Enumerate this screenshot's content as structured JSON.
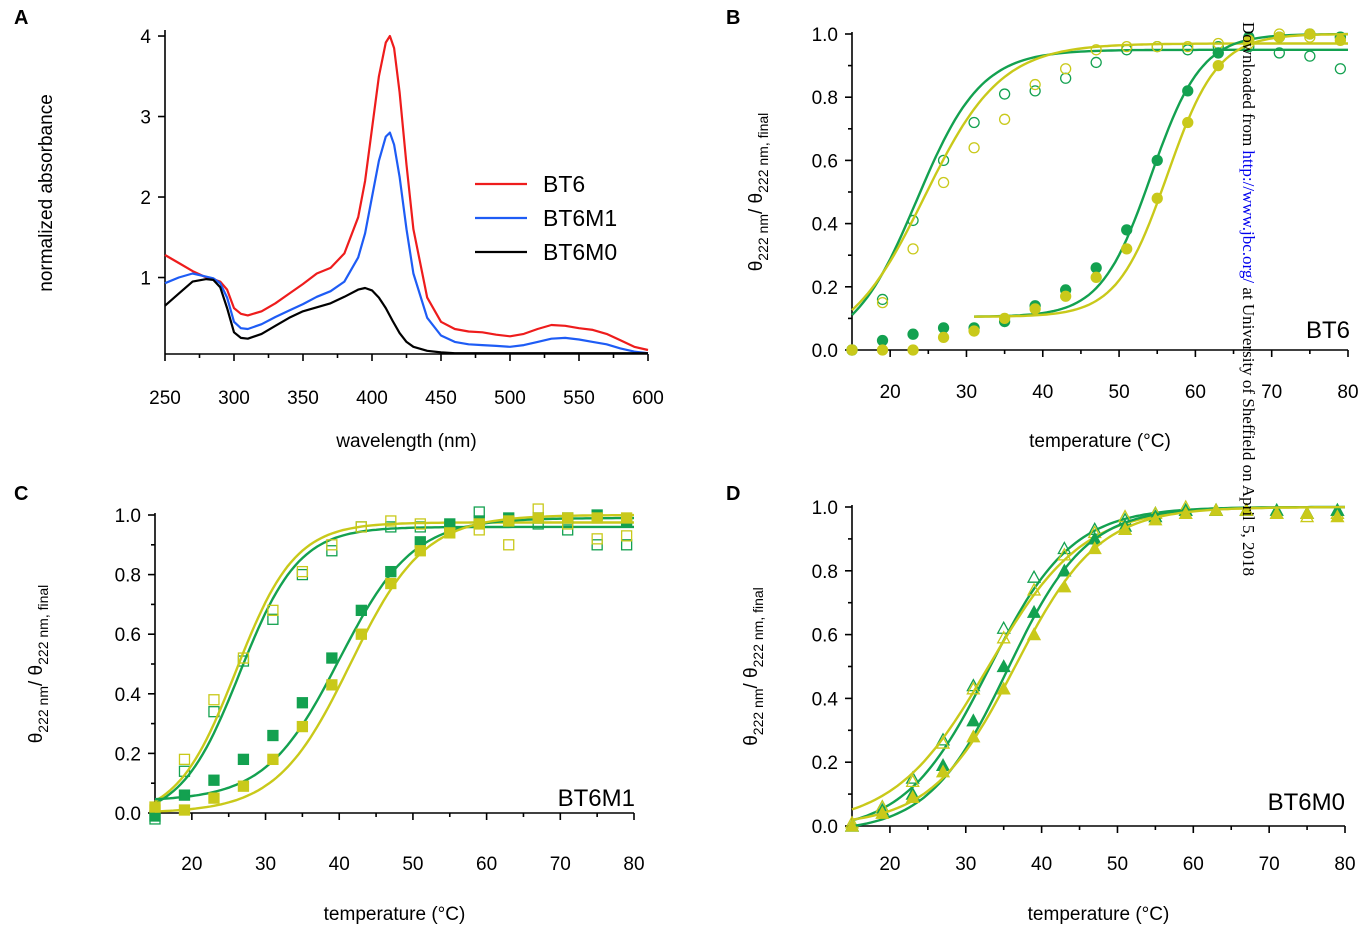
{
  "colors": {
    "green": "#13A150",
    "yellow": "#C9C91A",
    "red": "#EE1C1C",
    "blue": "#1E5CF5",
    "black": "#000000"
  },
  "watermark": {
    "before": "Downloaded from ",
    "link": "http://www.jbc.org/",
    "after": " at University of Sheffield on April 5, 2018"
  },
  "chart_data": [
    {
      "panel": "A",
      "type": "line",
      "xlabel": "wavelength (nm)",
      "ylabel": "normalized absorbance",
      "xlim": [
        250,
        600
      ],
      "ylim": [
        0.05,
        4.05
      ],
      "xticks": [
        250,
        300,
        350,
        400,
        450,
        500,
        550,
        600
      ],
      "yticks": [
        1,
        2,
        3,
        4
      ],
      "legend_position": "center-right",
      "series": [
        {
          "name": "BT6",
          "color": "red",
          "x": [
            250,
            260,
            270,
            280,
            285,
            290,
            295,
            300,
            305,
            310,
            320,
            330,
            340,
            350,
            360,
            370,
            380,
            390,
            395,
            400,
            405,
            410,
            413,
            416,
            420,
            425,
            430,
            440,
            450,
            460,
            470,
            480,
            490,
            500,
            510,
            520,
            530,
            540,
            550,
            560,
            570,
            580,
            590,
            600
          ],
          "y": [
            1.28,
            1.18,
            1.08,
            1.0,
            0.98,
            0.95,
            0.85,
            0.62,
            0.55,
            0.53,
            0.58,
            0.68,
            0.8,
            0.92,
            1.05,
            1.12,
            1.3,
            1.75,
            2.2,
            2.85,
            3.5,
            3.92,
            4.0,
            3.85,
            3.3,
            2.4,
            1.6,
            0.75,
            0.45,
            0.36,
            0.33,
            0.32,
            0.29,
            0.27,
            0.3,
            0.36,
            0.41,
            0.4,
            0.37,
            0.35,
            0.3,
            0.22,
            0.14,
            0.1
          ]
        },
        {
          "name": "BT6M1",
          "color": "blue",
          "x": [
            250,
            260,
            270,
            280,
            285,
            290,
            295,
            300,
            305,
            310,
            320,
            330,
            340,
            350,
            360,
            370,
            380,
            390,
            395,
            400,
            405,
            410,
            413,
            416,
            420,
            425,
            430,
            440,
            450,
            460,
            470,
            480,
            490,
            500,
            510,
            520,
            530,
            540,
            550,
            560,
            570,
            580,
            590,
            600
          ],
          "y": [
            0.93,
            1.0,
            1.05,
            1.01,
            0.99,
            0.93,
            0.75,
            0.45,
            0.37,
            0.36,
            0.42,
            0.51,
            0.59,
            0.67,
            0.76,
            0.83,
            0.95,
            1.25,
            1.55,
            2.0,
            2.45,
            2.75,
            2.8,
            2.65,
            2.25,
            1.6,
            1.05,
            0.5,
            0.28,
            0.2,
            0.17,
            0.16,
            0.15,
            0.14,
            0.16,
            0.2,
            0.24,
            0.25,
            0.23,
            0.2,
            0.17,
            0.12,
            0.08,
            0.06
          ]
        },
        {
          "name": "BT6M0",
          "color": "black",
          "x": [
            250,
            260,
            270,
            280,
            285,
            290,
            295,
            300,
            305,
            310,
            320,
            330,
            340,
            350,
            360,
            370,
            380,
            390,
            395,
            400,
            405,
            410,
            415,
            420,
            425,
            430,
            440,
            450,
            460,
            470,
            480,
            490,
            500,
            520,
            540,
            560,
            580,
            600
          ],
          "y": [
            0.65,
            0.8,
            0.95,
            0.98,
            0.97,
            0.88,
            0.62,
            0.32,
            0.25,
            0.24,
            0.3,
            0.4,
            0.5,
            0.58,
            0.63,
            0.68,
            0.76,
            0.85,
            0.87,
            0.84,
            0.75,
            0.62,
            0.46,
            0.31,
            0.2,
            0.14,
            0.09,
            0.07,
            0.06,
            0.06,
            0.06,
            0.06,
            0.06,
            0.06,
            0.06,
            0.06,
            0.06,
            0.06
          ]
        }
      ]
    },
    {
      "panel": "B",
      "type": "scatter",
      "name": "BT6",
      "xlabel": "temperature  (°C)",
      "ylabel_main": "θ",
      "ylabel_sub1": "222 nm",
      "ylabel_sep": "/ θ",
      "ylabel_sub2": "222 nm, final",
      "xlim": [
        15,
        80
      ],
      "ylim": [
        0,
        1
      ],
      "xticks": [
        20,
        30,
        40,
        50,
        60,
        70,
        80
      ],
      "yticks": [
        0.0,
        0.2,
        0.4,
        0.6,
        0.8,
        1.0
      ],
      "series": [
        {
          "color": "green",
          "marker": "circle-open",
          "x": [
            15,
            19,
            23,
            27,
            31,
            35,
            39,
            43,
            47,
            51,
            55,
            59,
            63,
            67,
            71,
            75,
            79
          ],
          "y": [
            0.0,
            0.16,
            0.41,
            0.6,
            0.72,
            0.81,
            0.82,
            0.86,
            0.91,
            0.95,
            0.96,
            0.95,
            0.96,
            0.96,
            0.94,
            0.93,
            0.89
          ],
          "fit": {
            "x0": 15,
            "x1": 80,
            "bottom": 0.0,
            "top": 0.95,
            "tm": 23.5,
            "w": 4.2
          }
        },
        {
          "color": "yellow",
          "marker": "circle-open",
          "x": [
            15,
            19,
            23,
            27,
            31,
            35,
            39,
            43,
            47,
            51,
            55,
            59,
            63,
            67,
            71,
            75,
            79
          ],
          "y": [
            0.0,
            0.15,
            0.32,
            0.53,
            0.64,
            0.73,
            0.84,
            0.89,
            0.95,
            0.96,
            0.96,
            0.96,
            0.97,
            0.97,
            1.0,
            0.99,
            0.99
          ],
          "fit": {
            "x0": 15,
            "x1": 80,
            "bottom": 0.0,
            "top": 0.97,
            "tm": 24.5,
            "w": 5.0
          }
        },
        {
          "color": "green",
          "marker": "circle-filled",
          "x": [
            15,
            19,
            23,
            27,
            31,
            35,
            39,
            43,
            47,
            51,
            55,
            59,
            63,
            67,
            71,
            75,
            79
          ],
          "y": [
            0.0,
            0.03,
            0.05,
            0.07,
            0.07,
            0.09,
            0.14,
            0.19,
            0.26,
            0.38,
            0.6,
            0.82,
            0.94,
            0.99,
            0.99,
            1.0,
            0.99
          ],
          "fit": {
            "x0": 31,
            "x1": 80,
            "bottom": 0.105,
            "top": 1.0,
            "tm": 54.2,
            "w": 3.3
          }
        },
        {
          "color": "yellow",
          "marker": "circle-filled",
          "x": [
            15,
            19,
            23,
            27,
            31,
            35,
            39,
            43,
            47,
            51,
            55,
            59,
            63,
            67,
            71,
            75,
            79
          ],
          "y": [
            0.0,
            0.0,
            0.0,
            0.04,
            0.06,
            0.1,
            0.13,
            0.17,
            0.23,
            0.32,
            0.48,
            0.72,
            0.9,
            0.98,
            0.99,
            1.0,
            0.98
          ],
          "fit": {
            "x0": 31,
            "x1": 80,
            "bottom": 0.105,
            "top": 1.0,
            "tm": 56.3,
            "w": 3.3
          }
        }
      ]
    },
    {
      "panel": "C",
      "type": "scatter",
      "name": "BT6M1",
      "xlabel": "temperature  (°C)",
      "ylabel_main": "θ",
      "ylabel_sub1": "222 nm",
      "ylabel_sep": "/ θ",
      "ylabel_sub2": "222 nm, final",
      "xlim": [
        15,
        80
      ],
      "ylim": [
        0,
        1
      ],
      "xticks": [
        20,
        30,
        40,
        50,
        60,
        70,
        80
      ],
      "yticks": [
        0.0,
        0.2,
        0.4,
        0.6,
        0.8,
        1.0
      ],
      "series": [
        {
          "color": "green",
          "marker": "square-open",
          "x": [
            15,
            19,
            23,
            27,
            31,
            35,
            39,
            43,
            47,
            51,
            55,
            59,
            63,
            67,
            71,
            75,
            79
          ],
          "y": [
            -0.02,
            0.14,
            0.34,
            0.51,
            0.65,
            0.8,
            0.88,
            0.96,
            0.96,
            0.96,
            0.96,
            1.01,
            0.98,
            0.97,
            0.95,
            0.9,
            0.9
          ],
          "fit": {
            "x0": 15,
            "x1": 80,
            "bottom": -0.02,
            "top": 0.96,
            "tm": 26.5,
            "w": 4.0
          }
        },
        {
          "color": "yellow",
          "marker": "square-open",
          "x": [
            15,
            19,
            23,
            27,
            31,
            35,
            39,
            43,
            47,
            51,
            55,
            59,
            63,
            67,
            71,
            75,
            79
          ],
          "y": [
            0.01,
            0.18,
            0.38,
            0.52,
            0.68,
            0.81,
            0.9,
            0.96,
            0.98,
            0.97,
            0.96,
            0.95,
            0.9,
            1.02,
            0.97,
            0.92,
            0.93
          ],
          "fit": {
            "x0": 15,
            "x1": 80,
            "bottom": -0.02,
            "top": 0.975,
            "tm": 26.0,
            "w": 4.0
          }
        },
        {
          "color": "green",
          "marker": "square-filled",
          "x": [
            15,
            19,
            23,
            27,
            31,
            35,
            39,
            43,
            47,
            51,
            55,
            59,
            63,
            67,
            71,
            75,
            79
          ],
          "y": [
            -0.01,
            0.06,
            0.11,
            0.18,
            0.26,
            0.37,
            0.52,
            0.68,
            0.81,
            0.91,
            0.97,
            0.98,
            0.99,
            0.99,
            0.99,
            1.0,
            0.98
          ],
          "fit": {
            "x0": 15,
            "x1": 80,
            "bottom": 0.04,
            "top": 0.99,
            "tm": 40.0,
            "w": 5.0
          }
        },
        {
          "color": "yellow",
          "marker": "square-filled",
          "x": [
            15,
            19,
            23,
            27,
            31,
            35,
            39,
            43,
            47,
            51,
            55,
            59,
            63,
            67,
            71,
            75,
            79
          ],
          "y": [
            0.02,
            0.01,
            0.05,
            0.09,
            0.18,
            0.29,
            0.43,
            0.6,
            0.77,
            0.88,
            0.94,
            0.97,
            0.98,
            0.99,
            0.99,
            0.99,
            0.99
          ],
          "fit": {
            "x0": 15,
            "x1": 80,
            "bottom": 0.0,
            "top": 1.0,
            "tm": 41.5,
            "w": 5.0
          }
        }
      ]
    },
    {
      "panel": "D",
      "type": "scatter",
      "name": "BT6M0",
      "xlabel": "temperature  (°C)",
      "ylabel_main": "θ",
      "ylabel_sub1": "222 nm",
      "ylabel_sep": "/ θ",
      "ylabel_sub2": "222 nm, final",
      "xlim": [
        15,
        80
      ],
      "ylim": [
        0,
        1
      ],
      "xticks": [
        20,
        30,
        40,
        50,
        60,
        70,
        80
      ],
      "yticks": [
        0.0,
        0.2,
        0.4,
        0.6,
        0.8,
        1.0
      ],
      "series": [
        {
          "color": "green",
          "marker": "triangle-open",
          "x": [
            15,
            19,
            23,
            27,
            31,
            35,
            39,
            43,
            47,
            51,
            55,
            59,
            63,
            67,
            71,
            75,
            79
          ],
          "y": [
            0.0,
            0.06,
            0.15,
            0.27,
            0.44,
            0.62,
            0.78,
            0.87,
            0.93,
            0.96,
            0.98,
            0.99,
            0.99,
            0.99,
            0.98,
            0.98,
            0.99
          ],
          "fit": {
            "x0": 15,
            "x1": 80,
            "bottom": -0.02,
            "top": 1.0,
            "tm": 33.0,
            "w": 5.5
          }
        },
        {
          "color": "yellow",
          "marker": "triangle-open",
          "x": [
            15,
            19,
            23,
            27,
            31,
            35,
            39,
            43,
            47,
            51,
            55,
            59,
            63,
            67,
            71,
            75,
            79
          ],
          "y": [
            0.01,
            0.06,
            0.14,
            0.26,
            0.43,
            0.59,
            0.74,
            0.85,
            0.92,
            0.97,
            0.98,
            1.0,
            0.99,
            0.99,
            0.98,
            0.97,
            0.98
          ],
          "fit": {
            "x0": 15,
            "x1": 80,
            "bottom": 0.0,
            "top": 1.0,
            "tm": 33.0,
            "w": 6.2
          }
        },
        {
          "color": "green",
          "marker": "triangle-filled",
          "x": [
            15,
            19,
            23,
            27,
            31,
            35,
            39,
            43,
            47,
            51,
            55,
            59,
            63,
            67,
            71,
            75,
            79
          ],
          "y": [
            0.0,
            0.05,
            0.1,
            0.19,
            0.33,
            0.5,
            0.67,
            0.8,
            0.9,
            0.94,
            0.97,
            0.99,
            0.99,
            0.99,
            0.99,
            0.98,
            0.99
          ],
          "fit": {
            "x0": 15,
            "x1": 80,
            "bottom": -0.02,
            "top": 1.0,
            "tm": 35.5,
            "w": 5.2
          }
        },
        {
          "color": "yellow",
          "marker": "triangle-filled",
          "x": [
            15,
            19,
            23,
            27,
            31,
            35,
            39,
            43,
            47,
            51,
            55,
            59,
            63,
            67,
            71,
            75,
            79
          ],
          "y": [
            0.0,
            0.04,
            0.09,
            0.17,
            0.28,
            0.43,
            0.6,
            0.75,
            0.87,
            0.93,
            0.96,
            0.98,
            0.99,
            0.99,
            0.98,
            0.98,
            0.97
          ],
          "fit": {
            "x0": 15,
            "x1": 80,
            "bottom": 0.0,
            "top": 1.0,
            "tm": 36.5,
            "w": 5.5
          }
        }
      ]
    }
  ]
}
